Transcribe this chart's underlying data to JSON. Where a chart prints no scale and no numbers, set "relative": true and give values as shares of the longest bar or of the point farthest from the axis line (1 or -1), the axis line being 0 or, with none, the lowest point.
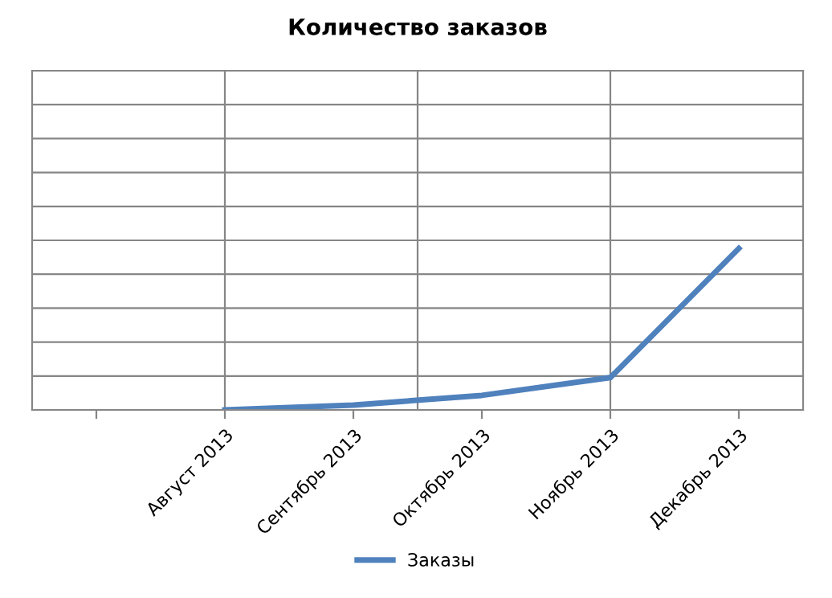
{
  "chart_data": {
    "type": "line",
    "title": "Количество заказов",
    "categories": [
      null,
      "Август 2013",
      "Сентябрь 2013",
      "Октябрь 2013",
      "Ноябрь 2013",
      "Декабрь 2013"
    ],
    "series": [
      {
        "name": "Заказы",
        "color": "#4f81bd",
        "values": [
          null,
          0,
          0.03,
          0.09,
          0.2,
          1
        ]
      }
    ],
    "relative": true,
    "grid": true,
    "legend": "bottom",
    "marker": "none",
    "line_style": "solid"
  }
}
